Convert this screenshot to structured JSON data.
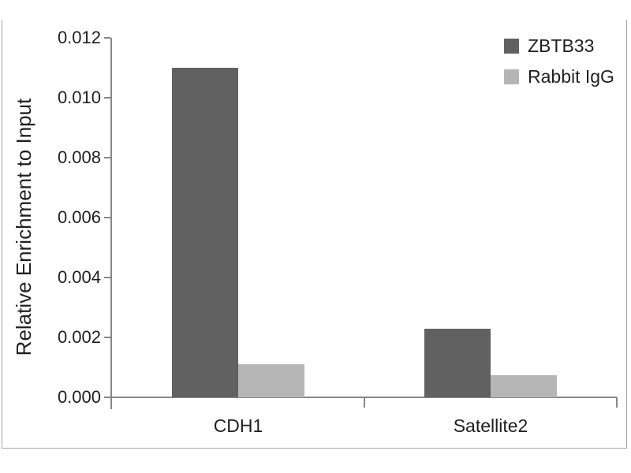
{
  "figure": {
    "y_axis_title": "Relative Enrichment to Input"
  },
  "chart_data": {
    "type": "bar",
    "categories": [
      "CDH1",
      "Satellite2"
    ],
    "series": [
      {
        "name": "ZBTB33",
        "color": "#616161",
        "values": [
          0.011,
          0.0023
        ]
      },
      {
        "name": "Rabbit IgG",
        "color": "#b5b5b5",
        "values": [
          0.0011,
          0.00075
        ]
      }
    ],
    "title": "",
    "xlabel": "",
    "ylabel": "Relative Enrichment to Input",
    "ylim": [
      0,
      0.012
    ],
    "ytick_step": 0.002,
    "ytick_decimals": 3,
    "grid": false,
    "legend_position": "top-right",
    "legend": [
      "ZBTB33",
      "Rabbit IgG"
    ]
  },
  "colors": {
    "axis": "#878787",
    "text": "#1f1f1f",
    "frame_border": "#a3a3a3",
    "background": "#ffffff"
  }
}
